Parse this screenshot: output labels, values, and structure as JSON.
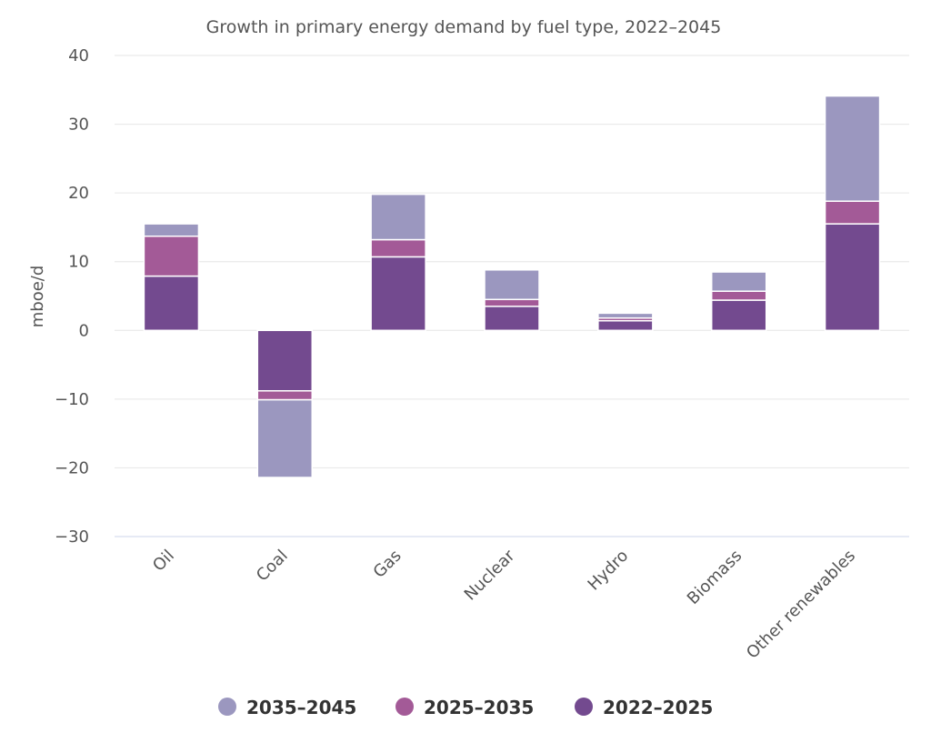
{
  "chart_data": {
    "type": "bar",
    "stacked": true,
    "subtitle": "Growth in primary energy demand by fuel type, 2022–2045",
    "ylabel": "mboe/d",
    "ylim": [
      -30,
      40
    ],
    "yticks": [
      -30,
      -20,
      -10,
      0,
      10,
      20,
      30,
      40
    ],
    "ytick_labels": [
      "−30",
      "−20",
      "−10",
      "0",
      "10",
      "20",
      "30",
      "40"
    ],
    "categories": [
      "Oil",
      "Coal",
      "Gas",
      "Nuclear",
      "Hydro",
      "Biomass",
      "Other renewables"
    ],
    "series": [
      {
        "name": "2035–2045",
        "color": "#9b97bf",
        "values": [
          1.8,
          -11.3,
          6.6,
          4.3,
          0.7,
          2.8,
          15.3
        ]
      },
      {
        "name": "2025–2035",
        "color": "#a35a97",
        "values": [
          5.8,
          -1.3,
          2.5,
          1.0,
          0.4,
          1.3,
          3.3
        ]
      },
      {
        "name": "2022–2025",
        "color": "#734a8f",
        "values": [
          7.9,
          -8.8,
          10.7,
          3.5,
          1.4,
          4.4,
          15.5
        ]
      }
    ],
    "grid": true,
    "legend_position": "bottom"
  }
}
